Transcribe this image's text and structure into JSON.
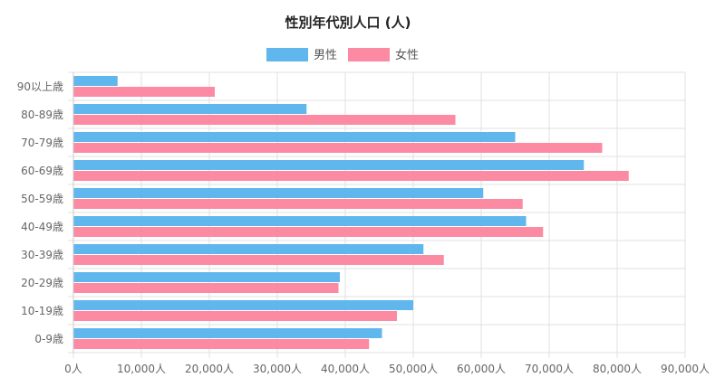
{
  "chart_data": {
    "type": "bar",
    "orientation": "horizontal",
    "title": "性別年代別人口 (人)",
    "legend_position": "top-center",
    "categories": [
      "90以上歳",
      "80-89歳",
      "70-79歳",
      "60-69歳",
      "50-59歳",
      "40-49歳",
      "30-39歳",
      "20-29歳",
      "10-19歳",
      "0-9歳"
    ],
    "series": [
      {
        "name": "男性",
        "color": "#5fb7ee",
        "values": [
          6500,
          34300,
          65000,
          75100,
          60300,
          66600,
          51500,
          39200,
          50000,
          45400
        ]
      },
      {
        "name": "女性",
        "color": "#fb8aa2",
        "values": [
          20800,
          56200,
          77800,
          81700,
          66100,
          69100,
          54500,
          39000,
          47600,
          43500
        ]
      }
    ],
    "x_ticks": [
      "0人",
      "10,000人",
      "20,000人",
      "30,000人",
      "40,000人",
      "50,000人",
      "60,000人",
      "70,000人",
      "80,000人",
      "90,000人"
    ],
    "xlim": [
      0,
      90000
    ],
    "grid": true
  }
}
